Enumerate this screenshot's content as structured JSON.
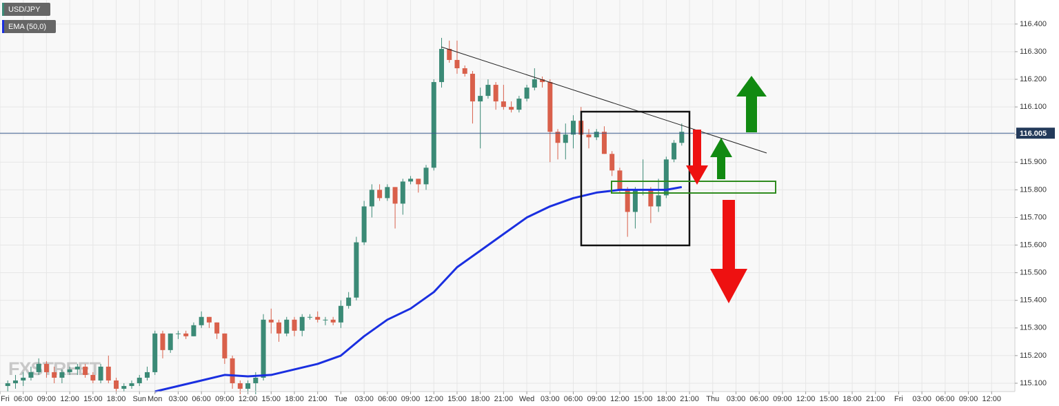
{
  "chart_data": {
    "type": "candlestick",
    "watermark": "FXSTREET",
    "up_color": "#3b8a76",
    "down_color": "#d9604b",
    "grid": true,
    "xlim": [
      -20,
      111
    ],
    "ylim": [
      115.07,
      116.487
    ],
    "yticks": [
      {
        "value": 115.1,
        "label": "115.100"
      },
      {
        "value": 115.2,
        "label": "115.200"
      },
      {
        "value": 115.3,
        "label": "115.300"
      },
      {
        "value": 115.4,
        "label": "115.400"
      },
      {
        "value": 115.5,
        "label": "115.500"
      },
      {
        "value": 115.6,
        "label": "115.600"
      },
      {
        "value": 115.7,
        "label": "115.700"
      },
      {
        "value": 115.8,
        "label": "115.800"
      },
      {
        "value": 115.9,
        "label": "115.900"
      },
      {
        "value": 116.0,
        "label": "116.000"
      },
      {
        "value": 116.1,
        "label": "116.100"
      },
      {
        "value": 116.2,
        "label": "116.200"
      },
      {
        "value": 116.3,
        "label": "116.300"
      },
      {
        "value": 116.4,
        "label": "116.400"
      }
    ],
    "xticks": [
      {
        "value": -20,
        "label": "Fri"
      },
      {
        "value": -17,
        "label": "06:00"
      },
      {
        "value": -14,
        "label": "09:00"
      },
      {
        "value": -11,
        "label": "12:00"
      },
      {
        "value": -8,
        "label": "15:00"
      },
      {
        "value": -5,
        "label": "18:00"
      },
      {
        "value": -2,
        "label": "Sun"
      },
      {
        "value": 0,
        "label": "Mon"
      },
      {
        "value": 3,
        "label": "03:00"
      },
      {
        "value": 6,
        "label": "06:00"
      },
      {
        "value": 9,
        "label": "09:00"
      },
      {
        "value": 12,
        "label": "12:00"
      },
      {
        "value": 15,
        "label": "15:00"
      },
      {
        "value": 18,
        "label": "18:00"
      },
      {
        "value": 21,
        "label": "21:00"
      },
      {
        "value": 24,
        "label": "Tue"
      },
      {
        "value": 27,
        "label": "03:00"
      },
      {
        "value": 30,
        "label": "06:00"
      },
      {
        "value": 33,
        "label": "09:00"
      },
      {
        "value": 36,
        "label": "12:00"
      },
      {
        "value": 39,
        "label": "15:00"
      },
      {
        "value": 42,
        "label": "18:00"
      },
      {
        "value": 45,
        "label": "21:00"
      },
      {
        "value": 48,
        "label": "Wed"
      },
      {
        "value": 51,
        "label": "03:00"
      },
      {
        "value": 54,
        "label": "06:00"
      },
      {
        "value": 57,
        "label": "09:00"
      },
      {
        "value": 60,
        "label": "12:00"
      },
      {
        "value": 63,
        "label": "15:00"
      },
      {
        "value": 66,
        "label": "18:00"
      },
      {
        "value": 69,
        "label": "21:00"
      },
      {
        "value": 72,
        "label": "Thu"
      },
      {
        "value": 75,
        "label": "03:00"
      },
      {
        "value": 78,
        "label": "06:00"
      },
      {
        "value": 81,
        "label": "09:00"
      },
      {
        "value": 84,
        "label": "12:00"
      },
      {
        "value": 87,
        "label": "15:00"
      },
      {
        "value": 90,
        "label": "18:00"
      },
      {
        "value": 93,
        "label": "21:00"
      },
      {
        "value": 96,
        "label": "Fri"
      },
      {
        "value": 99,
        "label": "03:00"
      },
      {
        "value": 102,
        "label": "06:00"
      },
      {
        "value": 105,
        "label": "09:00"
      },
      {
        "value": 108,
        "label": "12:00"
      }
    ],
    "current_price": 116.005,
    "series": [
      {
        "name": "USD/JPY",
        "color": "#666666",
        "x": [
          -19,
          -18,
          -17,
          -16,
          -15,
          -14,
          -13,
          -12,
          -11,
          -10,
          -9,
          -8,
          -7,
          -6,
          -5,
          -4,
          -3,
          -2,
          -1,
          0,
          1,
          2,
          3,
          4,
          5,
          6,
          7,
          8,
          9,
          10,
          11,
          12,
          13,
          14,
          15,
          16,
          17,
          18,
          19,
          20,
          21,
          22,
          23,
          24,
          25,
          26,
          27,
          28,
          29,
          30,
          31,
          32,
          33,
          34,
          35,
          36,
          37,
          38,
          39,
          40,
          41,
          42,
          43,
          44,
          45,
          46,
          47,
          48,
          49,
          50,
          51,
          52,
          53,
          54,
          55,
          56,
          57,
          58,
          59,
          60,
          61,
          62,
          63,
          64,
          65,
          66,
          67,
          68
        ],
        "open": [
          115.09,
          115.1,
          115.11,
          115.12,
          115.14,
          115.17,
          115.14,
          115.12,
          115.14,
          115.15,
          115.16,
          115.13,
          115.11,
          115.16,
          115.11,
          115.08,
          115.09,
          115.1,
          115.12,
          115.14,
          115.28,
          115.22,
          115.28,
          115.28,
          115.27,
          115.31,
          115.34,
          115.32,
          115.28,
          115.19,
          115.1,
          115.08,
          115.1,
          115.12,
          115.33,
          115.32,
          115.28,
          115.33,
          115.29,
          115.34,
          115.34,
          115.33,
          115.33,
          115.32,
          115.38,
          115.41,
          115.61,
          115.74,
          115.8,
          115.77,
          115.81,
          115.75,
          115.83,
          115.84,
          115.82,
          115.88,
          116.19,
          116.31,
          116.27,
          116.24,
          116.22,
          116.12,
          116.14,
          116.18,
          116.12,
          116.1,
          116.09,
          116.13,
          116.17,
          116.2,
          116.19,
          116.01,
          115.97,
          116.0,
          116.05,
          116.0,
          115.99,
          116.01,
          115.93,
          115.87,
          115.8,
          115.72,
          115.8,
          115.8,
          115.74,
          115.78,
          115.91,
          115.97
        ],
        "high": [
          115.11,
          115.13,
          115.14,
          115.16,
          115.19,
          115.18,
          115.16,
          115.15,
          115.16,
          115.17,
          115.17,
          115.14,
          115.17,
          115.2,
          115.12,
          115.1,
          115.11,
          115.13,
          115.16,
          115.29,
          115.29,
          115.28,
          115.29,
          115.29,
          115.32,
          115.36,
          115.34,
          115.32,
          115.28,
          115.2,
          115.11,
          115.11,
          115.14,
          115.35,
          115.37,
          115.33,
          115.34,
          115.34,
          115.35,
          115.35,
          115.36,
          115.34,
          115.34,
          115.4,
          115.43,
          115.63,
          115.76,
          115.82,
          115.82,
          115.82,
          115.81,
          115.84,
          115.85,
          115.84,
          115.89,
          116.2,
          116.35,
          116.34,
          116.34,
          116.25,
          116.23,
          116.17,
          116.2,
          116.19,
          116.18,
          116.12,
          116.14,
          116.18,
          116.24,
          116.21,
          116.2,
          116.02,
          116.04,
          116.07,
          116.1,
          116.02,
          116.02,
          116.03,
          115.94,
          115.88,
          115.81,
          115.81,
          115.91,
          115.81,
          115.84,
          115.92,
          115.98,
          116.04
        ],
        "low": [
          115.07,
          115.08,
          115.09,
          115.11,
          115.13,
          115.12,
          115.1,
          115.1,
          115.13,
          115.13,
          115.12,
          115.1,
          115.1,
          115.1,
          115.07,
          115.07,
          115.08,
          115.09,
          115.11,
          115.13,
          115.19,
          115.21,
          115.26,
          115.26,
          115.27,
          115.3,
          115.3,
          115.26,
          115.17,
          115.08,
          115.06,
          115.06,
          115.06,
          115.11,
          115.28,
          115.25,
          115.27,
          115.27,
          115.27,
          115.33,
          115.32,
          115.31,
          115.31,
          115.3,
          115.37,
          115.4,
          115.6,
          115.7,
          115.76,
          115.76,
          115.66,
          115.71,
          115.82,
          115.79,
          115.8,
          115.87,
          116.17,
          116.26,
          116.22,
          116.21,
          116.04,
          115.95,
          116.13,
          116.09,
          116.09,
          116.08,
          116.08,
          116.12,
          116.16,
          116.17,
          115.9,
          115.91,
          115.91,
          115.95,
          116.0,
          115.95,
          115.98,
          115.93,
          115.85,
          115.79,
          115.63,
          115.66,
          115.78,
          115.68,
          115.72,
          115.77,
          115.9,
          115.96
        ],
        "close": [
          115.1,
          115.11,
          115.12,
          115.14,
          115.17,
          115.14,
          115.12,
          115.14,
          115.15,
          115.16,
          115.13,
          115.11,
          115.16,
          115.11,
          115.08,
          115.09,
          115.1,
          115.12,
          115.14,
          115.28,
          115.22,
          115.28,
          115.28,
          115.27,
          115.31,
          115.34,
          115.32,
          115.28,
          115.19,
          115.1,
          115.08,
          115.1,
          115.12,
          115.33,
          115.32,
          115.28,
          115.33,
          115.29,
          115.34,
          115.34,
          115.33,
          115.33,
          115.32,
          115.38,
          115.41,
          115.61,
          115.74,
          115.8,
          115.77,
          115.81,
          115.75,
          115.83,
          115.84,
          115.82,
          115.88,
          116.19,
          116.31,
          116.27,
          116.24,
          116.22,
          116.12,
          116.14,
          116.18,
          116.12,
          116.1,
          116.09,
          116.13,
          116.17,
          116.2,
          116.19,
          116.01,
          115.97,
          116.0,
          116.05,
          116.0,
          115.99,
          116.01,
          115.93,
          115.87,
          115.8,
          115.72,
          115.8,
          115.8,
          115.74,
          115.78,
          115.91,
          115.97,
          116.01
        ]
      },
      {
        "name": "EMA (50,0)",
        "type": "line",
        "color": "#1a2fe0",
        "x": [
          0,
          3,
          6,
          9,
          12,
          15,
          18,
          21,
          24,
          27,
          30,
          33,
          36,
          39,
          42,
          45,
          48,
          51,
          54,
          57,
          60,
          63,
          66,
          68
        ],
        "values": [
          115.07,
          115.09,
          115.11,
          115.13,
          115.125,
          115.13,
          115.15,
          115.17,
          115.2,
          115.27,
          115.33,
          115.37,
          115.43,
          115.52,
          115.58,
          115.64,
          115.7,
          115.74,
          115.77,
          115.79,
          115.8,
          115.8,
          115.8,
          115.81
        ]
      }
    ]
  }
}
